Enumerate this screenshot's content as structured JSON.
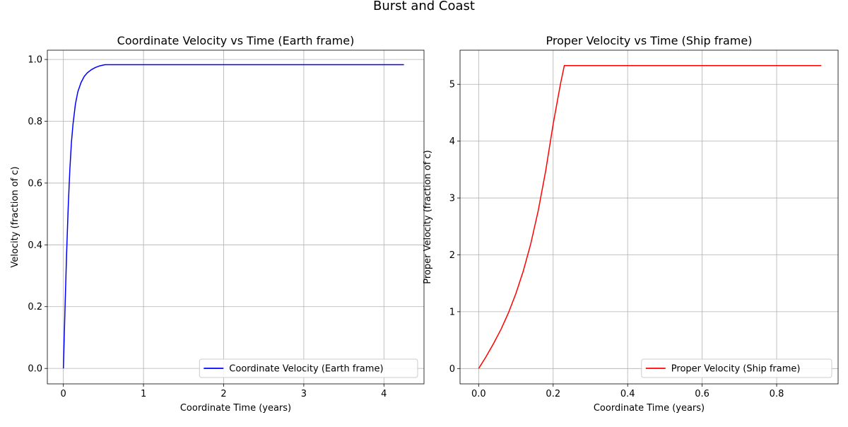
{
  "figure": {
    "suptitle": "Burst and Coast"
  },
  "chart_data": [
    {
      "type": "line",
      "title": "Coordinate Velocity vs Time (Earth frame)",
      "xlabel": "Coordinate Time (years)",
      "ylabel": "Velocity (fraction of c)",
      "xlim": [
        -0.2,
        4.5
      ],
      "ylim": [
        -0.05,
        1.03
      ],
      "xticks": [
        0,
        1,
        2,
        3,
        4
      ],
      "xtick_labels": [
        "0",
        "1",
        "2",
        "3",
        "4"
      ],
      "yticks": [
        0.0,
        0.2,
        0.4,
        0.6,
        0.8,
        1.0
      ],
      "ytick_labels": [
        "0.0",
        "0.2",
        "0.4",
        "0.6",
        "0.8",
        "1.0"
      ],
      "grid": true,
      "legend": "lower right",
      "series": [
        {
          "name": "Coordinate Velocity (Earth frame)",
          "color": "#0000ff",
          "x": [
            0,
            0.02,
            0.04,
            0.06,
            0.08,
            0.1,
            0.12,
            0.15,
            0.18,
            0.22,
            0.26,
            0.3,
            0.35,
            0.4,
            0.45,
            0.5,
            0.52,
            4.25
          ],
          "y": [
            0,
            0.19,
            0.37,
            0.52,
            0.64,
            0.73,
            0.79,
            0.855,
            0.895,
            0.925,
            0.945,
            0.957,
            0.967,
            0.974,
            0.979,
            0.982,
            0.983,
            0.983
          ]
        }
      ]
    },
    {
      "type": "line",
      "title": "Proper Velocity vs Time (Ship frame)",
      "xlabel": "Coordinate Time (years)",
      "ylabel": "Proper Velocity (fraction of c)",
      "xlim": [
        -0.05,
        0.965
      ],
      "ylim": [
        -0.27,
        5.6
      ],
      "xticks": [
        0.0,
        0.2,
        0.4,
        0.6,
        0.8
      ],
      "xtick_labels": [
        "0.0",
        "0.2",
        "0.4",
        "0.6",
        "0.8"
      ],
      "yticks": [
        0,
        1,
        2,
        3,
        4,
        5
      ],
      "ytick_labels": [
        "0",
        "1",
        "2",
        "3",
        "4",
        "5"
      ],
      "grid": true,
      "legend": "lower right",
      "series": [
        {
          "name": "Proper Velocity (Ship frame)",
          "color": "#ff0000",
          "x": [
            0,
            0.02,
            0.04,
            0.06,
            0.08,
            0.1,
            0.12,
            0.14,
            0.16,
            0.18,
            0.2,
            0.22,
            0.23,
            0.92
          ],
          "y": [
            0,
            0.21,
            0.44,
            0.69,
            0.98,
            1.32,
            1.72,
            2.2,
            2.78,
            3.48,
            4.3,
            5.02,
            5.33,
            5.33
          ]
        }
      ]
    }
  ]
}
